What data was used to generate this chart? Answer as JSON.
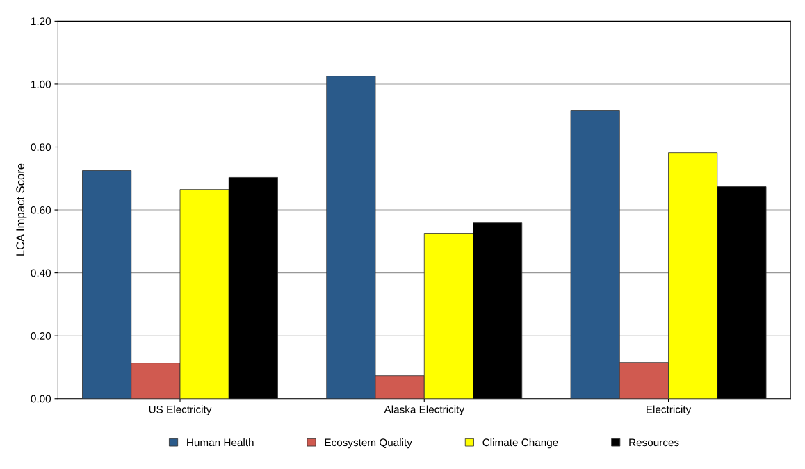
{
  "chart_data": {
    "type": "bar",
    "ylabel": "LCA Impact Score",
    "categories": [
      "US Electricity",
      "Alaska Electricity",
      "Electricity"
    ],
    "series": [
      {
        "name": "Human Health",
        "color": "#2a5a8a",
        "values": [
          0.725,
          1.025,
          0.915
        ]
      },
      {
        "name": "Ecosystem Quality",
        "color": "#d05a50",
        "values": [
          0.113,
          0.073,
          0.115
        ]
      },
      {
        "name": "Climate Change",
        "color": "#ffff00",
        "values": [
          0.665,
          0.524,
          0.782
        ]
      },
      {
        "name": "Resources",
        "color": "#000000",
        "values": [
          0.703,
          0.559,
          0.674
        ]
      }
    ],
    "ylim": [
      0,
      1.2
    ],
    "yticks": [
      {
        "value": 0,
        "label": "0.00"
      },
      {
        "value": 0.2,
        "label": "0.20"
      },
      {
        "value": 0.4,
        "label": "0.40"
      },
      {
        "value": 0.6,
        "label": "0.60"
      },
      {
        "value": 0.8,
        "label": "0.80"
      },
      {
        "value": 1.0,
        "label": "1.00"
      },
      {
        "value": 1.2,
        "label": "1.20"
      }
    ],
    "grid": "y",
    "legend": "bottom"
  }
}
